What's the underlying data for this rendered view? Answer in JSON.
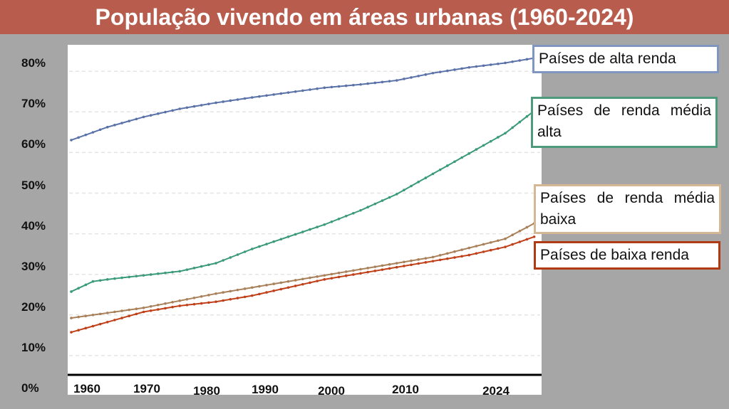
{
  "chart_data": {
    "type": "line",
    "title": "População vivendo em áreas urbanas (1960-2024)",
    "xlabel": "",
    "ylabel": "",
    "xlim": [
      1960,
      2024
    ],
    "ylim": [
      0,
      80
    ],
    "y_ticks": [
      "0%",
      "10%",
      "20%",
      "30%",
      "40%",
      "50%",
      "60%",
      "70%",
      "80%"
    ],
    "x_ticks": [
      "1960",
      "1970",
      "1980",
      "1990",
      "2000",
      "2010",
      "2024"
    ],
    "grid": true,
    "legend_placement": "right",
    "series": [
      {
        "name": "Países de alta renda",
        "color": "#5a72a8",
        "border": "#7f97c0",
        "x": [
          1960,
          1965,
          1970,
          1975,
          1980,
          1985,
          1990,
          1995,
          2000,
          2005,
          2010,
          2015,
          2020,
          2024
        ],
        "values": [
          61.3,
          64.5,
          67,
          69,
          70.5,
          71.8,
          73,
          74.2,
          75,
          76,
          77.8,
          79.2,
          80.3,
          81.5
        ]
      },
      {
        "name": "Países de renda média alta",
        "color": "#3a9a7a",
        "border": "#4e9a7c",
        "x": [
          1960,
          1963,
          1965,
          1970,
          1975,
          1980,
          1985,
          1990,
          1995,
          2000,
          2005,
          2010,
          2015,
          2020,
          2024
        ],
        "values": [
          24,
          26.5,
          27,
          28,
          29,
          31,
          34.5,
          37.5,
          40.5,
          44,
          48,
          53,
          58,
          63,
          68.5
        ]
      },
      {
        "name": "Países de renda média baixa",
        "color": "#a8805a",
        "border": "#d4b895",
        "x": [
          1960,
          1970,
          1980,
          1990,
          2000,
          2010,
          2020,
          2024
        ],
        "values": [
          17.5,
          20,
          23.5,
          26.5,
          29.5,
          32.5,
          37,
          40.8
        ]
      },
      {
        "name": "Países de baixa renda",
        "color": "#c0401a",
        "border": "#b03a14",
        "x": [
          1960,
          1965,
          1970,
          1975,
          1980,
          1985,
          1990,
          1995,
          2000,
          2005,
          2010,
          2015,
          2020,
          2024
        ],
        "values": [
          14,
          16.5,
          19,
          20.5,
          21.5,
          23,
          25,
          27,
          28.5,
          30,
          31.5,
          33,
          35,
          37.5
        ]
      }
    ]
  }
}
